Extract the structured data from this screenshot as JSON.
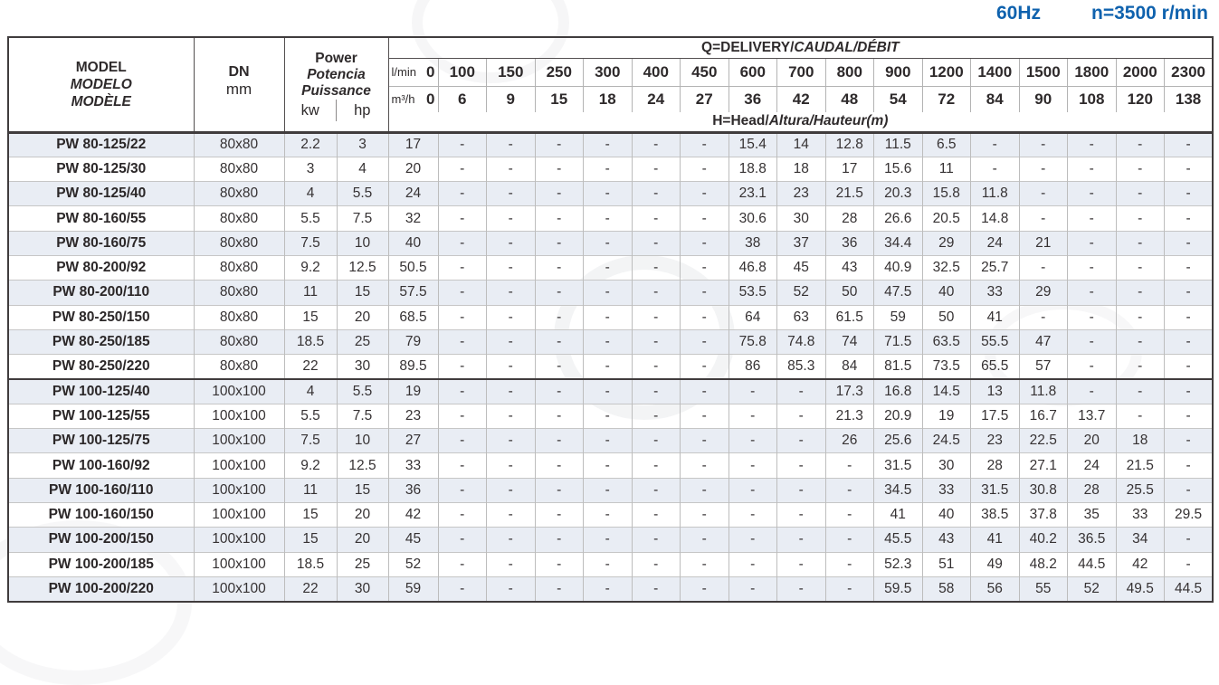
{
  "page": {
    "frequency": "60Hz",
    "speed": "n=3500 r/min",
    "accent_color": "#0f62ae",
    "alt_row_color": "#e9edf4"
  },
  "table": {
    "header": {
      "model": [
        "MODEL",
        "MODELO",
        "MODÈLE"
      ],
      "dn_label": "DN",
      "dn_unit": "mm",
      "power": [
        "Power",
        "Potencia",
        "Puissance"
      ],
      "power_units": [
        "kw",
        "hp"
      ],
      "delivery_en": "Q=DELIVERY/",
      "delivery_es": "CAUDAL/",
      "delivery_fr": "DÉBIT",
      "flow_unit_lmin": "l/min",
      "flow_unit_m3h": "m³/h",
      "flow_lmin": [
        "0",
        "100",
        "150",
        "250",
        "300",
        "400",
        "450",
        "600",
        "700",
        "800",
        "900",
        "1200",
        "1400",
        "1500",
        "1800",
        "2000",
        "2300"
      ],
      "flow_m3h": [
        "0",
        "6",
        "9",
        "15",
        "18",
        "24",
        "27",
        "36",
        "42",
        "48",
        "54",
        "72",
        "84",
        "90",
        "108",
        "120",
        "138"
      ],
      "head_en": "H=Head/",
      "head_es": "Altura/",
      "head_fr": "Hauteur(m)"
    },
    "rows": [
      {
        "model": "PW 80-125/22",
        "dn": "80x80",
        "kw": "2.2",
        "hp": "3",
        "head": [
          "17",
          "-",
          "-",
          "-",
          "-",
          "-",
          "-",
          "15.4",
          "14",
          "12.8",
          "11.5",
          "6.5",
          "-",
          "-",
          "-",
          "-",
          "-"
        ]
      },
      {
        "model": "PW 80-125/30",
        "dn": "80x80",
        "kw": "3",
        "hp": "4",
        "head": [
          "20",
          "-",
          "-",
          "-",
          "-",
          "-",
          "-",
          "18.8",
          "18",
          "17",
          "15.6",
          "11",
          "-",
          "-",
          "-",
          "-",
          "-"
        ]
      },
      {
        "model": "PW 80-125/40",
        "dn": "80x80",
        "kw": "4",
        "hp": "5.5",
        "head": [
          "24",
          "-",
          "-",
          "-",
          "-",
          "-",
          "-",
          "23.1",
          "23",
          "21.5",
          "20.3",
          "15.8",
          "11.8",
          "-",
          "-",
          "-",
          "-"
        ]
      },
      {
        "model": "PW 80-160/55",
        "dn": "80x80",
        "kw": "5.5",
        "hp": "7.5",
        "head": [
          "32",
          "-",
          "-",
          "-",
          "-",
          "-",
          "-",
          "30.6",
          "30",
          "28",
          "26.6",
          "20.5",
          "14.8",
          "-",
          "-",
          "-",
          "-"
        ]
      },
      {
        "model": "PW 80-160/75",
        "dn": "80x80",
        "kw": "7.5",
        "hp": "10",
        "head": [
          "40",
          "-",
          "-",
          "-",
          "-",
          "-",
          "-",
          "38",
          "37",
          "36",
          "34.4",
          "29",
          "24",
          "21",
          "-",
          "-",
          "-"
        ]
      },
      {
        "model": "PW 80-200/92",
        "dn": "80x80",
        "kw": "9.2",
        "hp": "12.5",
        "head": [
          "50.5",
          "-",
          "-",
          "-",
          "-",
          "-",
          "-",
          "46.8",
          "45",
          "43",
          "40.9",
          "32.5",
          "25.7",
          "-",
          "-",
          "-",
          "-"
        ]
      },
      {
        "model": "PW 80-200/110",
        "dn": "80x80",
        "kw": "11",
        "hp": "15",
        "head": [
          "57.5",
          "-",
          "-",
          "-",
          "-",
          "-",
          "-",
          "53.5",
          "52",
          "50",
          "47.5",
          "40",
          "33",
          "29",
          "-",
          "-",
          "-"
        ]
      },
      {
        "model": "PW 80-250/150",
        "dn": "80x80",
        "kw": "15",
        "hp": "20",
        "head": [
          "68.5",
          "-",
          "-",
          "-",
          "-",
          "-",
          "-",
          "64",
          "63",
          "61.5",
          "59",
          "50",
          "41",
          "-",
          "-",
          "-",
          "-"
        ]
      },
      {
        "model": "PW 80-250/185",
        "dn": "80x80",
        "kw": "18.5",
        "hp": "25",
        "head": [
          "79",
          "-",
          "-",
          "-",
          "-",
          "-",
          "-",
          "75.8",
          "74.8",
          "74",
          "71.5",
          "63.5",
          "55.5",
          "47",
          "-",
          "-",
          "-"
        ]
      },
      {
        "model": "PW 80-250/220",
        "dn": "80x80",
        "kw": "22",
        "hp": "30",
        "head": [
          "89.5",
          "-",
          "-",
          "-",
          "-",
          "-",
          "-",
          "86",
          "85.3",
          "84",
          "81.5",
          "73.5",
          "65.5",
          "57",
          "-",
          "-",
          "-"
        ]
      },
      {
        "model": "PW 100-125/40",
        "dn": "100x100",
        "kw": "4",
        "hp": "5.5",
        "head": [
          "19",
          "-",
          "-",
          "-",
          "-",
          "-",
          "-",
          "-",
          "-",
          "17.3",
          "16.8",
          "14.5",
          "13",
          "11.8",
          "-",
          "-",
          "-"
        ]
      },
      {
        "model": "PW 100-125/55",
        "dn": "100x100",
        "kw": "5.5",
        "hp": "7.5",
        "head": [
          "23",
          "-",
          "-",
          "-",
          "-",
          "-",
          "-",
          "-",
          "-",
          "21.3",
          "20.9",
          "19",
          "17.5",
          "16.7",
          "13.7",
          "-",
          "-"
        ]
      },
      {
        "model": "PW 100-125/75",
        "dn": "100x100",
        "kw": "7.5",
        "hp": "10",
        "head": [
          "27",
          "-",
          "-",
          "-",
          "-",
          "-",
          "-",
          "-",
          "-",
          "26",
          "25.6",
          "24.5",
          "23",
          "22.5",
          "20",
          "18",
          "-"
        ]
      },
      {
        "model": "PW 100-160/92",
        "dn": "100x100",
        "kw": "9.2",
        "hp": "12.5",
        "head": [
          "33",
          "-",
          "-",
          "-",
          "-",
          "-",
          "-",
          "-",
          "-",
          "-",
          "31.5",
          "30",
          "28",
          "27.1",
          "24",
          "21.5",
          "-"
        ]
      },
      {
        "model": "PW 100-160/110",
        "dn": "100x100",
        "kw": "11",
        "hp": "15",
        "head": [
          "36",
          "-",
          "-",
          "-",
          "-",
          "-",
          "-",
          "-",
          "-",
          "-",
          "34.5",
          "33",
          "31.5",
          "30.8",
          "28",
          "25.5",
          "-"
        ]
      },
      {
        "model": "PW 100-160/150",
        "dn": "100x100",
        "kw": "15",
        "hp": "20",
        "head": [
          "42",
          "-",
          "-",
          "-",
          "-",
          "-",
          "-",
          "-",
          "-",
          "-",
          "41",
          "40",
          "38.5",
          "37.8",
          "35",
          "33",
          "29.5"
        ]
      },
      {
        "model": "PW 100-200/150",
        "dn": "100x100",
        "kw": "15",
        "hp": "20",
        "head": [
          "45",
          "-",
          "-",
          "-",
          "-",
          "-",
          "-",
          "-",
          "-",
          "-",
          "45.5",
          "43",
          "41",
          "40.2",
          "36.5",
          "34",
          "-"
        ]
      },
      {
        "model": "PW 100-200/185",
        "dn": "100x100",
        "kw": "18.5",
        "hp": "25",
        "head": [
          "52",
          "-",
          "-",
          "-",
          "-",
          "-",
          "-",
          "-",
          "-",
          "-",
          "52.3",
          "51",
          "49",
          "48.2",
          "44.5",
          "42",
          "-"
        ]
      },
      {
        "model": "PW 100-200/220",
        "dn": "100x100",
        "kw": "22",
        "hp": "30",
        "head": [
          "59",
          "-",
          "-",
          "-",
          "-",
          "-",
          "-",
          "-",
          "-",
          "-",
          "59.5",
          "58",
          "56",
          "55",
          "52",
          "49.5",
          "44.5"
        ]
      }
    ]
  }
}
